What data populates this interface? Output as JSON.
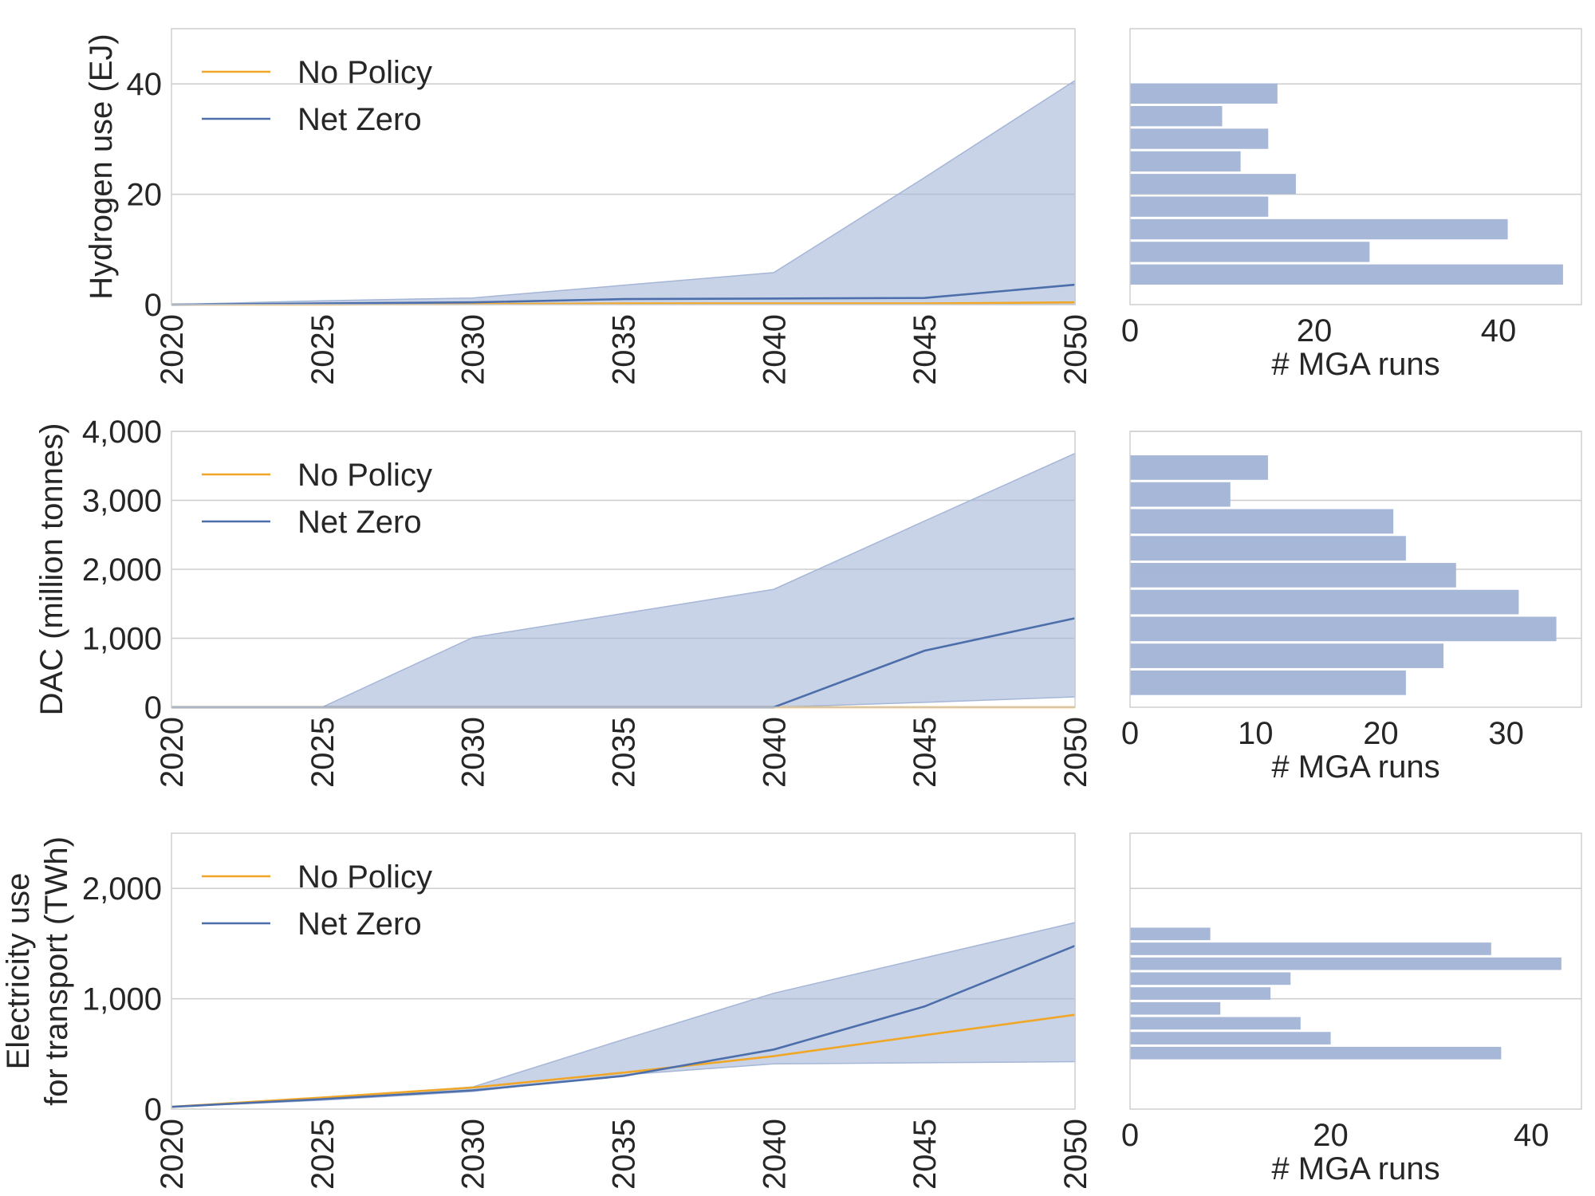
{
  "chart_data": [
    {
      "type": "area",
      "ylabel": [
        "Hydrogen use (EJ)"
      ],
      "x": [
        2020,
        2025,
        2030,
        2035,
        2040,
        2045,
        2050
      ],
      "xlim": [
        2020,
        2050
      ],
      "ylim": [
        0,
        50
      ],
      "yticks": [
        0,
        20,
        40
      ],
      "ytick_labels": [
        "0",
        "20",
        "40"
      ],
      "legend": {
        "position": "top-left",
        "entries": [
          "No Policy",
          "Net Zero"
        ]
      },
      "series": [
        {
          "name": "No Policy",
          "color": "#f0a728",
          "values": [
            0,
            0,
            0.1,
            0.2,
            0.2,
            0.2,
            0.4
          ]
        },
        {
          "name": "Net Zero",
          "color": "#4c6fab",
          "values": [
            0,
            0.2,
            0.4,
            1.0,
            1.1,
            1.2,
            3.6
          ]
        }
      ],
      "band": {
        "color": "#a5b6d7",
        "upper": [
          0,
          0.7,
          1.2,
          3.5,
          5.8,
          23.0,
          40.6
        ],
        "lower": [
          0,
          0,
          0,
          0,
          0,
          0,
          0
        ]
      }
    },
    {
      "type": "bar",
      "orientation": "horizontal",
      "xlabel": "# MGA runs",
      "xlim": [
        0,
        49
      ],
      "xticks": [
        0,
        20,
        40
      ],
      "xtick_labels": [
        "0",
        "20",
        "40"
      ],
      "ylim": [
        0,
        50
      ],
      "color": "#a5b6d7",
      "bins": [
        {
          "from": 3.4,
          "to": 7.5,
          "count": 47
        },
        {
          "from": 7.5,
          "to": 11.6,
          "count": 26
        },
        {
          "from": 11.6,
          "to": 15.7,
          "count": 41
        },
        {
          "from": 15.7,
          "to": 19.8,
          "count": 15
        },
        {
          "from": 19.8,
          "to": 23.9,
          "count": 18
        },
        {
          "from": 23.9,
          "to": 28.0,
          "count": 12
        },
        {
          "from": 28.0,
          "to": 32.1,
          "count": 15
        },
        {
          "from": 32.1,
          "to": 36.2,
          "count": 10
        },
        {
          "from": 36.2,
          "to": 40.3,
          "count": 16
        }
      ]
    },
    {
      "type": "area",
      "ylabel": [
        "DAC (million tonnes)"
      ],
      "x": [
        2020,
        2025,
        2030,
        2035,
        2040,
        2045,
        2050
      ],
      "xlim": [
        2020,
        2050
      ],
      "ylim": [
        0,
        4000
      ],
      "yticks": [
        0,
        1000,
        2000,
        3000,
        4000
      ],
      "ytick_labels": [
        "0",
        "1,000",
        "2,000",
        "3,000",
        "4,000"
      ],
      "legend": {
        "position": "top-left",
        "entries": [
          "No Policy",
          "Net Zero"
        ]
      },
      "series": [
        {
          "name": "No Policy",
          "color": "#f0a728",
          "values": [
            0,
            0,
            0,
            0,
            0,
            0,
            0
          ]
        },
        {
          "name": "Net Zero",
          "color": "#4c6fab",
          "values": [
            0,
            0,
            0,
            0,
            0,
            820,
            1290
          ]
        }
      ],
      "band": {
        "color": "#a5b6d7",
        "upper": [
          0,
          0,
          1010,
          1360,
          1710,
          2700,
          3680
        ],
        "lower": [
          0,
          0,
          0,
          0,
          0,
          70,
          150
        ]
      }
    },
    {
      "type": "bar",
      "orientation": "horizontal",
      "xlabel": "# MGA runs",
      "xlim": [
        0,
        36
      ],
      "xticks": [
        0,
        10,
        20,
        30
      ],
      "xtick_labels": [
        "0",
        "10",
        "20",
        "30"
      ],
      "ylim": [
        0,
        4000
      ],
      "color": "#a5b6d7",
      "bins": [
        {
          "from": 160,
          "to": 550,
          "count": 22
        },
        {
          "from": 550,
          "to": 940,
          "count": 25
        },
        {
          "from": 940,
          "to": 1330,
          "count": 34
        },
        {
          "from": 1330,
          "to": 1720,
          "count": 31
        },
        {
          "from": 1720,
          "to": 2110,
          "count": 26
        },
        {
          "from": 2110,
          "to": 2500,
          "count": 22
        },
        {
          "from": 2500,
          "to": 2890,
          "count": 21
        },
        {
          "from": 2890,
          "to": 3280,
          "count": 8
        },
        {
          "from": 3280,
          "to": 3670,
          "count": 11
        }
      ]
    },
    {
      "type": "area",
      "ylabel": [
        "Electricity use",
        "for transport (TWh)"
      ],
      "x": [
        2020,
        2025,
        2030,
        2035,
        2040,
        2045,
        2050
      ],
      "xlim": [
        2020,
        2050
      ],
      "ylim": [
        0,
        2500
      ],
      "yticks": [
        0,
        1000,
        2000
      ],
      "ytick_labels": [
        "0",
        "1,000",
        "2,000"
      ],
      "legend": {
        "position": "top-left",
        "entries": [
          "No Policy",
          "Net Zero"
        ]
      },
      "series": [
        {
          "name": "No Policy",
          "color": "#f0a728",
          "values": [
            20,
            105,
            195,
            330,
            480,
            670,
            855
          ]
        },
        {
          "name": "Net Zero",
          "color": "#4c6fab",
          "values": [
            20,
            90,
            170,
            300,
            540,
            930,
            1480
          ]
        }
      ],
      "band": {
        "color": "#a5b6d7",
        "upper": [
          20,
          100,
          200,
          630,
          1050,
          1370,
          1690
        ],
        "lower": [
          20,
          80,
          160,
          310,
          410,
          420,
          430
        ]
      }
    },
    {
      "type": "bar",
      "orientation": "horizontal",
      "xlabel": "# MGA runs",
      "xlim": [
        0,
        45
      ],
      "xticks": [
        0,
        20,
        40
      ],
      "xtick_labels": [
        "0",
        "20",
        "40"
      ],
      "ylim": [
        0,
        2500
      ],
      "color": "#a5b6d7",
      "bins": [
        {
          "from": 440,
          "to": 575,
          "count": 37
        },
        {
          "from": 575,
          "to": 710,
          "count": 20
        },
        {
          "from": 710,
          "to": 845,
          "count": 17
        },
        {
          "from": 845,
          "to": 980,
          "count": 9
        },
        {
          "from": 980,
          "to": 1115,
          "count": 14
        },
        {
          "from": 1115,
          "to": 1250,
          "count": 16
        },
        {
          "from": 1250,
          "to": 1385,
          "count": 43
        },
        {
          "from": 1385,
          "to": 1520,
          "count": 36
        },
        {
          "from": 1520,
          "to": 1655,
          "count": 8
        }
      ]
    }
  ]
}
